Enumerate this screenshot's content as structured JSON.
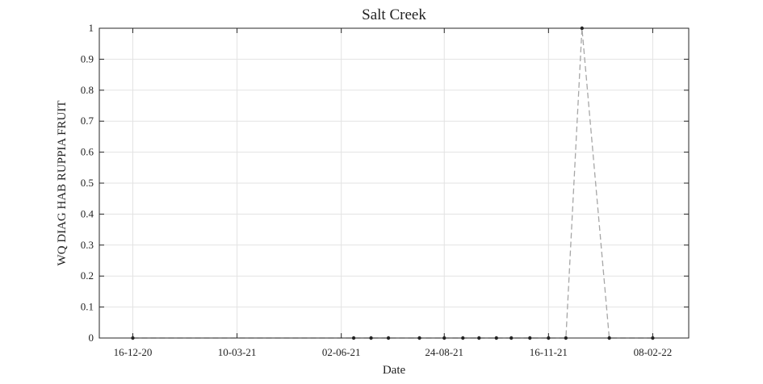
{
  "chart_data": {
    "type": "line",
    "title": "Salt Creek",
    "xlabel": "Date",
    "ylabel": "WQ DIAG HAB RUPPIA FRUIT",
    "xlim": [
      "2020-11-19",
      "2022-03-09"
    ],
    "ylim": [
      0,
      1
    ],
    "x_ticks": [
      "16-12-20",
      "10-03-21",
      "02-06-21",
      "24-08-21",
      "16-11-21",
      "08-02-22"
    ],
    "x_tick_dates": [
      "2020-12-16",
      "2021-03-10",
      "2021-06-02",
      "2021-08-24",
      "2021-11-16",
      "2022-02-08"
    ],
    "y_ticks": [
      "0",
      "0.1",
      "0.2",
      "0.3",
      "0.4",
      "0.5",
      "0.6",
      "0.7",
      "0.8",
      "0.9",
      "1"
    ],
    "grid": true,
    "series": [
      {
        "line_style": "dashed",
        "line_color": "#a6a6a6",
        "marker_color": "#222222",
        "points": [
          {
            "x": "2020-12-16",
            "y": 0
          },
          {
            "x": "2021-06-12",
            "y": 0
          },
          {
            "x": "2021-06-26",
            "y": 0
          },
          {
            "x": "2021-07-10",
            "y": 0
          },
          {
            "x": "2021-08-04",
            "y": 0
          },
          {
            "x": "2021-08-24",
            "y": 0
          },
          {
            "x": "2021-09-08",
            "y": 0
          },
          {
            "x": "2021-09-21",
            "y": 0
          },
          {
            "x": "2021-10-05",
            "y": 0
          },
          {
            "x": "2021-10-17",
            "y": 0
          },
          {
            "x": "2021-11-01",
            "y": 0
          },
          {
            "x": "2021-11-16",
            "y": 0
          },
          {
            "x": "2021-11-30",
            "y": 0
          },
          {
            "x": "2021-12-13",
            "y": 1
          },
          {
            "x": "2022-01-04",
            "y": 0
          },
          {
            "x": "2022-02-08",
            "y": 0
          }
        ]
      }
    ]
  }
}
